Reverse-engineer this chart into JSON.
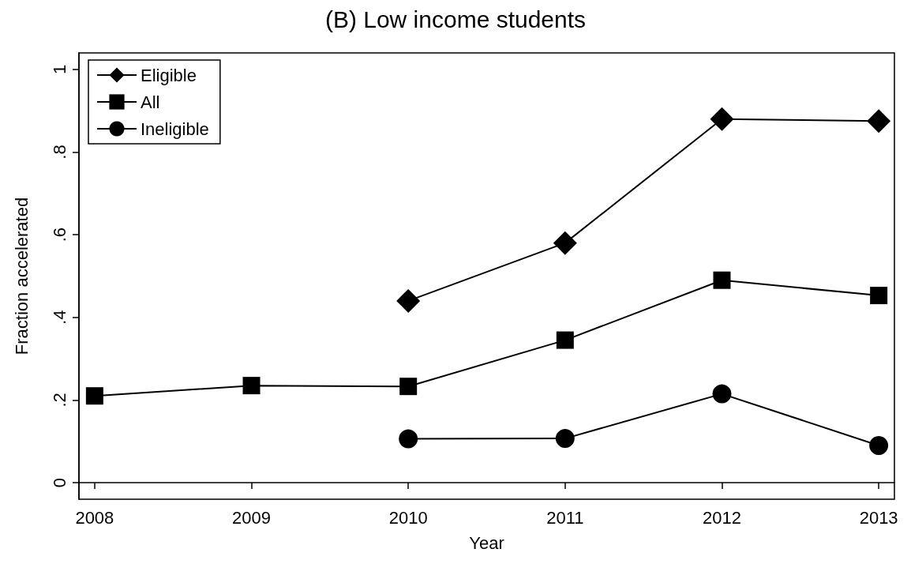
{
  "chart_data": {
    "type": "line",
    "title": "(B) Low income students",
    "xlabel": "Year",
    "ylabel": "Fraction accelerated",
    "x": [
      2008,
      2009,
      2010,
      2011,
      2012,
      2013
    ],
    "series": [
      {
        "name": "Eligible",
        "color": "#000000",
        "marker": "diamond",
        "values": [
          null,
          null,
          0.44,
          0.58,
          0.88,
          0.875
        ]
      },
      {
        "name": "All",
        "color": "#000000",
        "marker": "square",
        "values": [
          0.21,
          0.235,
          0.233,
          0.345,
          0.49,
          0.453
        ]
      },
      {
        "name": "Ineligible",
        "color": "#000000",
        "marker": "circle",
        "values": [
          null,
          null,
          0.106,
          0.107,
          0.215,
          0.09
        ]
      }
    ],
    "xlim": [
      2007.9,
      2013.1
    ],
    "xticks": [
      2008,
      2009,
      2010,
      2011,
      2012,
      2013
    ],
    "ylim": [
      -0.04,
      1.04
    ],
    "yticks": [
      {
        "value": 0,
        "label": "0"
      },
      {
        "value": 0.2,
        "label": ".2"
      },
      {
        "value": 0.4,
        "label": ".4"
      },
      {
        "value": 0.6,
        "label": ".6"
      },
      {
        "value": 0.8,
        "label": ".8"
      },
      {
        "value": 1,
        "label": "1"
      }
    ],
    "legend": "top left",
    "line_style": "solid"
  }
}
